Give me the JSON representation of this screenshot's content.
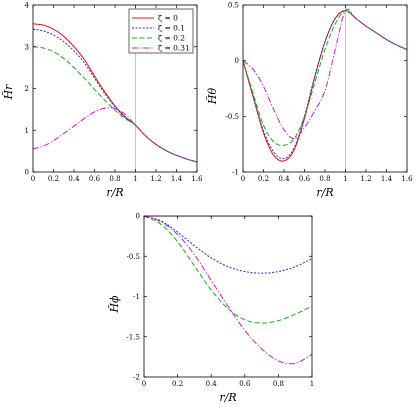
{
  "colors": {
    "zeta0": "#e8141e",
    "zeta01": "#2a2ad8",
    "zeta02": "#1fa31f",
    "zeta031": "#c21ec2",
    "vline": "#b9b9b9"
  },
  "legend": [
    "ζ = 0",
    "ζ = 0.1",
    "ζ = 0.2",
    "ζ = 0.31"
  ],
  "chart_data": [
    {
      "type": "line",
      "xlabel": "r/R",
      "ylabel": "H̃r",
      "xlim": [
        0,
        1.6
      ],
      "ylim": [
        0,
        4
      ],
      "xticks": [
        "0",
        "0.2",
        "0.4",
        "0.6",
        "0.8",
        "1",
        "1.2",
        "1.4",
        "1.6"
      ],
      "yticks": [
        "0",
        "1",
        "2",
        "3",
        "4"
      ],
      "vline": 1,
      "legend_position": "top-right",
      "series": [
        {
          "name": "ζ = 0",
          "x": [
            0,
            0.1,
            0.2,
            0.3,
            0.4,
            0.5,
            0.6,
            0.7,
            0.8,
            0.9,
            1.0,
            1.1,
            1.2,
            1.3,
            1.4,
            1.5,
            1.6
          ],
          "y": [
            3.55,
            3.52,
            3.42,
            3.25,
            3.0,
            2.7,
            2.3,
            1.92,
            1.58,
            1.32,
            1.12,
            0.86,
            0.66,
            0.51,
            0.4,
            0.31,
            0.24
          ]
        },
        {
          "name": "ζ = 0.1",
          "x": [
            0,
            0.1,
            0.2,
            0.3,
            0.4,
            0.5,
            0.6,
            0.7,
            0.8,
            0.9,
            1.0,
            1.1,
            1.2,
            1.3,
            1.4,
            1.5,
            1.6
          ],
          "y": [
            3.42,
            3.38,
            3.28,
            3.12,
            2.9,
            2.62,
            2.25,
            1.88,
            1.56,
            1.3,
            1.12,
            0.86,
            0.66,
            0.51,
            0.4,
            0.31,
            0.24
          ]
        },
        {
          "name": "ζ = 0.2",
          "x": [
            0,
            0.1,
            0.2,
            0.3,
            0.4,
            0.5,
            0.6,
            0.7,
            0.8,
            0.9,
            1.0,
            1.1,
            1.2,
            1.3,
            1.4,
            1.5,
            1.6
          ],
          "y": [
            3.0,
            2.97,
            2.88,
            2.72,
            2.5,
            2.25,
            1.98,
            1.72,
            1.48,
            1.28,
            1.12,
            0.86,
            0.66,
            0.51,
            0.4,
            0.31,
            0.24
          ]
        },
        {
          "name": "ζ = 0.31",
          "x": [
            0,
            0.1,
            0.2,
            0.3,
            0.4,
            0.5,
            0.6,
            0.7,
            0.8,
            0.9,
            1.0,
            1.1,
            1.2,
            1.3,
            1.4,
            1.5,
            1.6
          ],
          "y": [
            0.55,
            0.62,
            0.75,
            0.92,
            1.1,
            1.28,
            1.44,
            1.53,
            1.52,
            1.38,
            1.12,
            0.86,
            0.66,
            0.51,
            0.4,
            0.31,
            0.24
          ]
        }
      ]
    },
    {
      "type": "line",
      "xlabel": "r/R",
      "ylabel": "H̃θ",
      "xlim": [
        0,
        1.6
      ],
      "ylim": [
        -1,
        0.5
      ],
      "xticks": [
        "0",
        "0.2",
        "0.4",
        "0.6",
        "0.8",
        "1",
        "1.2",
        "1.4",
        "1.6"
      ],
      "yticks": [
        "-1",
        "-0.5",
        "0",
        "0.5"
      ],
      "vline": 1,
      "series": [
        {
          "name": "ζ = 0",
          "x": [
            0,
            0.1,
            0.2,
            0.3,
            0.4,
            0.5,
            0.6,
            0.7,
            0.8,
            0.9,
            1.0,
            1.1,
            1.2,
            1.3,
            1.4,
            1.5,
            1.6
          ],
          "y": [
            0,
            -0.33,
            -0.65,
            -0.85,
            -0.9,
            -0.8,
            -0.52,
            -0.15,
            0.17,
            0.38,
            0.45,
            0.38,
            0.31,
            0.25,
            0.19,
            0.14,
            0.1
          ]
        },
        {
          "name": "ζ = 0.1",
          "x": [
            0,
            0.1,
            0.2,
            0.3,
            0.4,
            0.5,
            0.6,
            0.7,
            0.8,
            0.9,
            1.0,
            1.1,
            1.2,
            1.3,
            1.4,
            1.5,
            1.6
          ],
          "y": [
            0,
            -0.32,
            -0.63,
            -0.82,
            -0.88,
            -0.78,
            -0.5,
            -0.14,
            0.17,
            0.38,
            0.45,
            0.38,
            0.31,
            0.25,
            0.19,
            0.14,
            0.1
          ]
        },
        {
          "name": "ζ = 0.2",
          "x": [
            0,
            0.1,
            0.2,
            0.3,
            0.4,
            0.5,
            0.6,
            0.7,
            0.8,
            0.9,
            1.0,
            1.1,
            1.2,
            1.3,
            1.4,
            1.5,
            1.6
          ],
          "y": [
            0,
            -0.3,
            -0.58,
            -0.73,
            -0.76,
            -0.7,
            -0.5,
            -0.2,
            0.1,
            0.33,
            0.45,
            0.38,
            0.31,
            0.25,
            0.19,
            0.14,
            0.1
          ]
        },
        {
          "name": "ζ = 0.31",
          "x": [
            0,
            0.1,
            0.2,
            0.3,
            0.4,
            0.5,
            0.6,
            0.7,
            0.8,
            0.9,
            1.0,
            1.1,
            1.2,
            1.3,
            1.4,
            1.5,
            1.6
          ],
          "y": [
            0,
            -0.08,
            -0.23,
            -0.44,
            -0.62,
            -0.7,
            -0.6,
            -0.45,
            -0.27,
            0.1,
            0.45,
            0.38,
            0.31,
            0.25,
            0.19,
            0.14,
            0.1
          ]
        }
      ]
    },
    {
      "type": "line",
      "xlabel": "r/R",
      "ylabel": "H̃ϕ",
      "xlim": [
        0,
        1
      ],
      "ylim": [
        -2,
        0
      ],
      "xticks": [
        "0",
        "0.2",
        "0.4",
        "0.6",
        "0.8",
        "1"
      ],
      "yticks": [
        "-2",
        "-1.5",
        "-1",
        "-0.5",
        "0"
      ],
      "series": [
        {
          "name": "ζ = 0",
          "x": [
            0,
            0.1,
            0.2,
            0.3,
            0.4,
            0.5,
            0.6,
            0.7,
            0.8,
            0.9,
            1.0
          ],
          "y": [
            0,
            0,
            0,
            0,
            0,
            0,
            0,
            0,
            0,
            0,
            0
          ]
        },
        {
          "name": "ζ = 0.1",
          "x": [
            0,
            0.1,
            0.2,
            0.3,
            0.4,
            0.5,
            0.6,
            0.7,
            0.8,
            0.9,
            1.0
          ],
          "y": [
            0,
            -0.06,
            -0.2,
            -0.37,
            -0.52,
            -0.63,
            -0.69,
            -0.71,
            -0.69,
            -0.63,
            -0.53
          ]
        },
        {
          "name": "ζ = 0.2",
          "x": [
            0,
            0.1,
            0.2,
            0.3,
            0.4,
            0.5,
            0.6,
            0.7,
            0.8,
            0.9,
            1.0
          ],
          "y": [
            0,
            -0.1,
            -0.32,
            -0.62,
            -0.92,
            -1.15,
            -1.29,
            -1.33,
            -1.3,
            -1.22,
            -1.12
          ]
        },
        {
          "name": "ζ = 0.31",
          "x": [
            0,
            0.1,
            0.2,
            0.3,
            0.4,
            0.5,
            0.6,
            0.7,
            0.8,
            0.9,
            1.0
          ],
          "y": [
            0,
            -0.07,
            -0.23,
            -0.48,
            -0.8,
            -1.12,
            -1.42,
            -1.65,
            -1.8,
            -1.83,
            -1.72
          ]
        }
      ]
    }
  ]
}
